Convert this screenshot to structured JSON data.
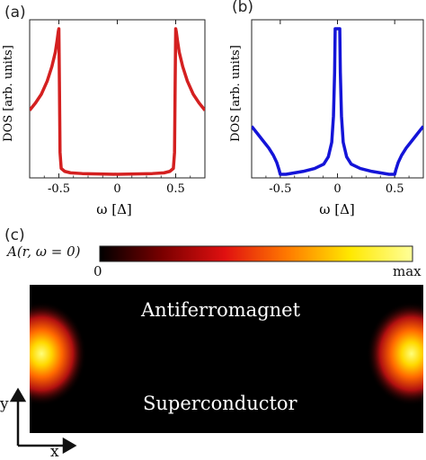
{
  "panels": {
    "a": "(a)",
    "b": "(b)",
    "c": "(c)"
  },
  "chart_data": [
    {
      "type": "line",
      "panel": "(a)",
      "xlabel": "ω [Δ]",
      "ylabel": "DOS [arb. units]",
      "xlim": [
        -0.75,
        0.75
      ],
      "xticks": [
        "-0.5",
        "0",
        "0.5"
      ],
      "color": "#d42020",
      "series": [
        {
          "x": [
            -0.75,
            -0.7,
            -0.65,
            -0.6,
            -0.56,
            -0.53,
            -0.515,
            -0.505,
            -0.5,
            -0.495,
            -0.49,
            -0.48,
            -0.45,
            -0.4,
            -0.3,
            0.0,
            0.3,
            0.4,
            0.45,
            0.48,
            0.49,
            0.495,
            0.5,
            0.505,
            0.515,
            0.53,
            0.56,
            0.6,
            0.65,
            0.7,
            0.75
          ],
          "y": [
            0.44,
            0.49,
            0.55,
            0.64,
            0.74,
            0.84,
            0.92,
            0.98,
            1.0,
            0.6,
            0.15,
            0.04,
            0.02,
            0.01,
            0.005,
            0.0,
            0.005,
            0.01,
            0.02,
            0.04,
            0.15,
            0.6,
            1.0,
            0.98,
            0.92,
            0.84,
            0.74,
            0.64,
            0.55,
            0.49,
            0.44
          ]
        }
      ]
    },
    {
      "type": "line",
      "panel": "(b)",
      "xlabel": "ω [Δ]",
      "ylabel": "DOS [arb. units]",
      "xlim": [
        -0.75,
        0.75
      ],
      "xticks": [
        "-0.5",
        "0",
        "0.5"
      ],
      "color": "#1414d8",
      "series": [
        {
          "x": [
            -0.75,
            -0.7,
            -0.65,
            -0.6,
            -0.56,
            -0.53,
            -0.51,
            -0.5,
            -0.45,
            -0.3,
            -0.2,
            -0.12,
            -0.08,
            -0.05,
            -0.035,
            -0.025,
            -0.02,
            0.02,
            0.025,
            0.035,
            0.05,
            0.08,
            0.12,
            0.2,
            0.3,
            0.45,
            0.5,
            0.51,
            0.53,
            0.56,
            0.6,
            0.65,
            0.7,
            0.75
          ],
          "y": [
            0.33,
            0.28,
            0.23,
            0.18,
            0.13,
            0.08,
            0.03,
            0.0,
            0.0,
            0.02,
            0.04,
            0.07,
            0.12,
            0.22,
            0.4,
            0.7,
            1.0,
            1.0,
            0.7,
            0.4,
            0.22,
            0.12,
            0.07,
            0.04,
            0.02,
            0.0,
            0.0,
            0.03,
            0.08,
            0.13,
            0.18,
            0.23,
            0.28,
            0.33
          ]
        }
      ]
    },
    {
      "type": "heatmap",
      "panel": "(c)",
      "colorbar_label": "A(r, ω = 0)",
      "colorbar_min": "0",
      "colorbar_max": "max",
      "colormap": [
        "#000000",
        "#7a0000",
        "#e01010",
        "#ff7a00",
        "#ffe800",
        "#ffff9a"
      ],
      "regions": {
        "top": "Antiferromagnet",
        "bottom": "Superconductor"
      },
      "axes": {
        "x": "x",
        "y": "y"
      },
      "hotspots": [
        {
          "x": 0.03,
          "y": 0.5,
          "intensity": 1.0
        },
        {
          "x": 0.97,
          "y": 0.5,
          "intensity": 1.0
        }
      ]
    }
  ]
}
